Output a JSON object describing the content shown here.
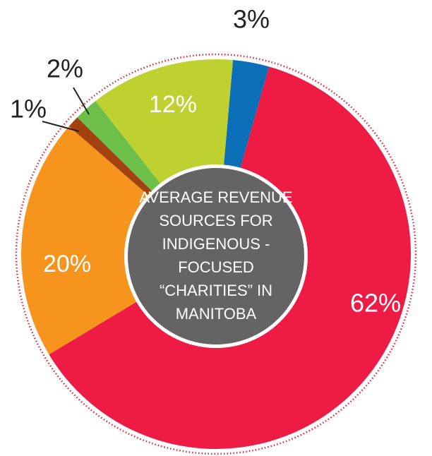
{
  "chart_data": {
    "type": "donut",
    "title": "AVERAGE REVENUE SOURCES FOR INDIGENOUS - FOCUSED “CHARITIES” IN MANITOBA",
    "values": [
      3,
      62,
      20,
      1,
      2,
      12
    ],
    "value_labels": [
      "3%",
      "62%",
      "20%",
      "1%",
      "2%",
      "12%"
    ],
    "colors": [
      "#0b6fb8",
      "#ee1b45",
      "#f7941d",
      "#a3420f",
      "#6cc04a",
      "#bfd031"
    ]
  }
}
